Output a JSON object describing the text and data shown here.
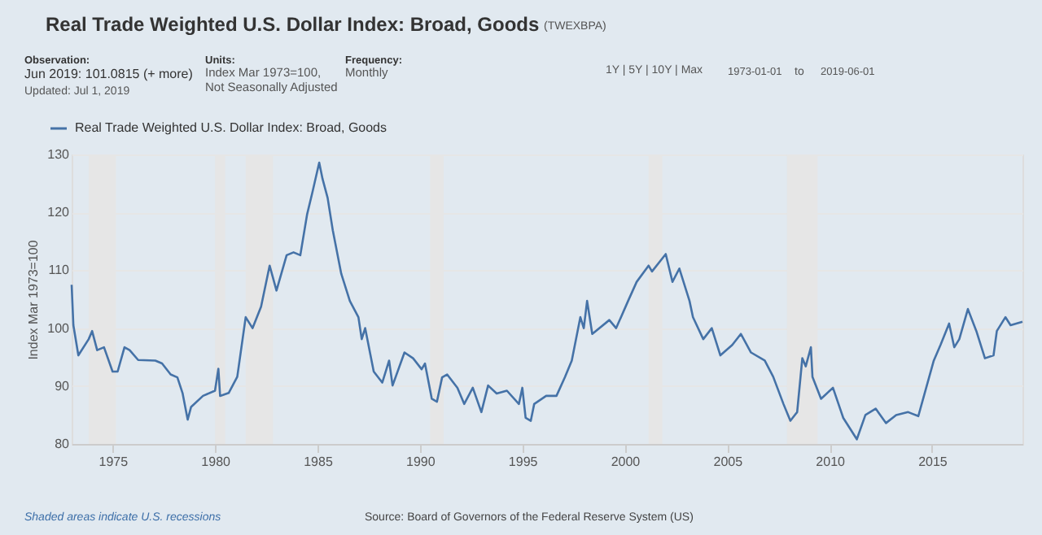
{
  "chart_data": {
    "type": "line",
    "title": "Real Trade Weighted U.S. Dollar Index: Broad, Goods",
    "subtitle": "(TWEXBPA)",
    "ylabel": "Index Mar 1973=100",
    "annotations": [
      "Observation:",
      "Jun 2019: 101.0815 (+ more)",
      "Updated: Jul 1, 2019",
      "Units:",
      "Index Mar 1973=100,",
      "Not Seasonally Adjusted",
      "Frequency:",
      "Monthly",
      "1Y | 5Y | 10Y | Max",
      "1973-01-01",
      "to",
      "2019-06-01",
      "Shaded areas indicate U.S. recessions",
      "Source: Board of Governors of the Federal Reserve System (US)"
    ],
    "x": [
      "1973-01",
      "1973-02",
      "1973-05",
      "1973-11",
      "1974-01",
      "1974-04",
      "1974-08",
      "1975-01",
      "1975-04",
      "1975-08",
      "1975-11",
      "1976-04",
      "1977-02",
      "1977-06",
      "1977-11",
      "1978-03",
      "1978-06",
      "1978-09",
      "1978-11",
      "1979-06",
      "1980-01",
      "1980-03",
      "1980-04",
      "1980-09",
      "1981-02",
      "1981-07",
      "1981-11",
      "1982-04",
      "1982-09",
      "1983-01",
      "1983-07",
      "1983-11",
      "1984-03",
      "1984-07",
      "1984-10",
      "1985-02",
      "1985-04",
      "1985-07",
      "1985-10",
      "1986-03",
      "1986-08",
      "1987-01",
      "1987-03",
      "1987-05",
      "1987-10",
      "1988-03",
      "1988-07",
      "1988-09",
      "1989-04",
      "1989-09",
      "1990-02",
      "1990-04",
      "1990-08",
      "1990-11",
      "1991-02",
      "1991-05",
      "1991-11",
      "1992-03",
      "1992-08",
      "1993-01",
      "1993-05",
      "1993-10",
      "1994-04",
      "1994-11",
      "1995-01",
      "1995-03",
      "1995-06",
      "1995-08",
      "1996-03",
      "1996-09",
      "1997-02",
      "1997-06",
      "1997-11",
      "1998-01",
      "1998-03",
      "1998-06",
      "1999-04",
      "1999-08",
      "2000-03",
      "2000-08",
      "2001-03",
      "2001-05",
      "2002-01",
      "2002-05",
      "2002-09",
      "2003-03",
      "2003-05",
      "2003-11",
      "2004-04",
      "2004-09",
      "2005-04",
      "2005-09",
      "2006-03",
      "2006-11",
      "2007-04",
      "2007-10",
      "2008-02",
      "2008-06",
      "2008-09",
      "2008-11",
      "2009-02",
      "2009-03",
      "2009-08",
      "2010-03",
      "2010-09",
      "2011-05",
      "2011-10",
      "2012-04",
      "2012-10",
      "2013-04",
      "2013-11",
      "2014-05",
      "2015-02",
      "2015-06",
      "2015-11",
      "2016-02",
      "2016-05",
      "2016-10",
      "2017-03",
      "2017-08",
      "2018-01",
      "2018-03",
      "2018-08",
      "2018-11",
      "2019-06"
    ],
    "series": [
      {
        "name": "Real Trade Weighted U.S. Dollar Index: Broad, Goods",
        "color": "#4572a7",
        "values": [
          107.5,
          100.5,
          95.3,
          98.1,
          99.5,
          96.2,
          96.7,
          92.5,
          92.5,
          96.7,
          96.2,
          94.5,
          94.4,
          93.9,
          92.0,
          91.5,
          88.8,
          84.2,
          86.4,
          88.3,
          89.2,
          93.0,
          88.3,
          88.8,
          91.6,
          101.9,
          100.0,
          103.7,
          110.8,
          106.5,
          112.6,
          113.1,
          112.6,
          119.7,
          123.4,
          128.6,
          125.8,
          122.5,
          116.9,
          109.4,
          104.7,
          101.9,
          98.1,
          100.0,
          92.5,
          90.6,
          94.4,
          90.1,
          95.8,
          94.8,
          92.9,
          93.9,
          87.8,
          87.3,
          91.5,
          92.0,
          89.7,
          86.9,
          89.7,
          85.5,
          90.1,
          88.7,
          89.2,
          86.9,
          89.7,
          84.5,
          84.0,
          86.9,
          88.3,
          88.3,
          91.6,
          94.4,
          101.9,
          100.0,
          104.7,
          99.0,
          101.4,
          100.0,
          104.7,
          108.0,
          110.8,
          109.8,
          112.8,
          108.0,
          110.3,
          104.7,
          101.9,
          98.1,
          100.0,
          95.3,
          97.1,
          99.0,
          95.8,
          94.4,
          91.6,
          86.9,
          84.0,
          85.5,
          94.8,
          93.4,
          96.7,
          91.6,
          87.8,
          89.7,
          84.5,
          80.8,
          85.0,
          86.1,
          83.6,
          85.0,
          85.5,
          84.8,
          94.4,
          97.1,
          100.8,
          96.7,
          98.1,
          103.3,
          99.5,
          94.8,
          95.3,
          99.5,
          101.9,
          100.5,
          101.1
        ]
      }
    ],
    "xlim": [
      "1973-01",
      "2019-06"
    ],
    "xticks": [
      {
        "value": "1975-01",
        "label": "1975"
      },
      {
        "value": "1980-01",
        "label": "1980"
      },
      {
        "value": "1985-01",
        "label": "1985"
      },
      {
        "value": "1990-01",
        "label": "1990"
      },
      {
        "value": "1995-01",
        "label": "1995"
      },
      {
        "value": "2000-01",
        "label": "2000"
      },
      {
        "value": "2005-01",
        "label": "2005"
      },
      {
        "value": "2010-01",
        "label": "2010"
      },
      {
        "value": "2015-01",
        "label": "2015"
      }
    ],
    "ylim": [
      80,
      130
    ],
    "yticks": [
      80,
      90,
      100,
      110,
      120,
      130
    ],
    "bands": [
      {
        "axis": "x",
        "from": "1973-11",
        "to": "1975-03",
        "color": "#e6e6e6"
      },
      {
        "axis": "x",
        "from": "1980-01",
        "to": "1980-07",
        "color": "#e6e6e6"
      },
      {
        "axis": "x",
        "from": "1981-07",
        "to": "1982-11",
        "color": "#e6e6e6"
      },
      {
        "axis": "x",
        "from": "1990-07",
        "to": "1991-03",
        "color": "#e6e6e6"
      },
      {
        "axis": "x",
        "from": "2001-03",
        "to": "2001-11",
        "color": "#e6e6e6"
      },
      {
        "axis": "x",
        "from": "2007-12",
        "to": "2009-06",
        "color": "#e6e6e6"
      }
    ],
    "grid": "y",
    "legend": "top left",
    "marker": "none",
    "line_style": "solid"
  }
}
